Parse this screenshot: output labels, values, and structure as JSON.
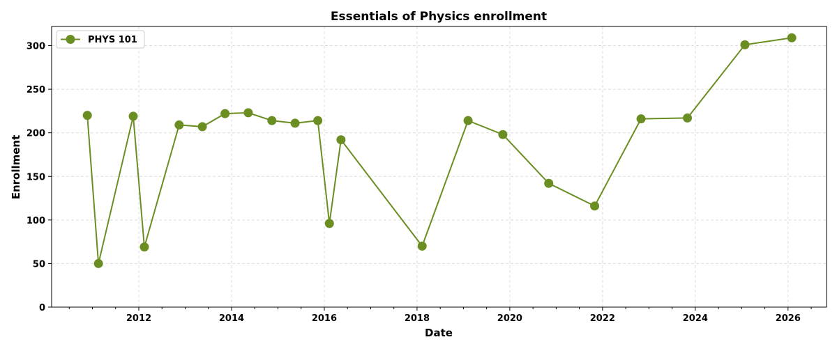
{
  "chart_data": {
    "type": "line",
    "title": "Essentials of Physics enrollment",
    "xlabel": "Date",
    "ylabel": "Enrollment",
    "xlim": [
      2010.12,
      2026.83
    ],
    "ylim": [
      0,
      322
    ],
    "xticks": [
      2012,
      2014,
      2016,
      2018,
      2020,
      2022,
      2024,
      2026
    ],
    "yticks": [
      0,
      50,
      100,
      150,
      200,
      250,
      300
    ],
    "grid": true,
    "legend_position": "top-left",
    "color": "#6b8e23",
    "series": [
      {
        "name": "PHYS 101",
        "x": [
          2010.89,
          2011.13,
          2011.88,
          2012.12,
          2012.87,
          2013.37,
          2013.86,
          2014.36,
          2014.87,
          2015.37,
          2015.86,
          2016.11,
          2016.36,
          2018.11,
          2019.1,
          2019.85,
          2020.84,
          2021.83,
          2022.83,
          2023.83,
          2025.07,
          2026.08
        ],
        "y": [
          220,
          50,
          219,
          69,
          209,
          207,
          222,
          223,
          214,
          211,
          214,
          96,
          192,
          70,
          214,
          198,
          142,
          116,
          216,
          217,
          301,
          309
        ]
      }
    ]
  }
}
